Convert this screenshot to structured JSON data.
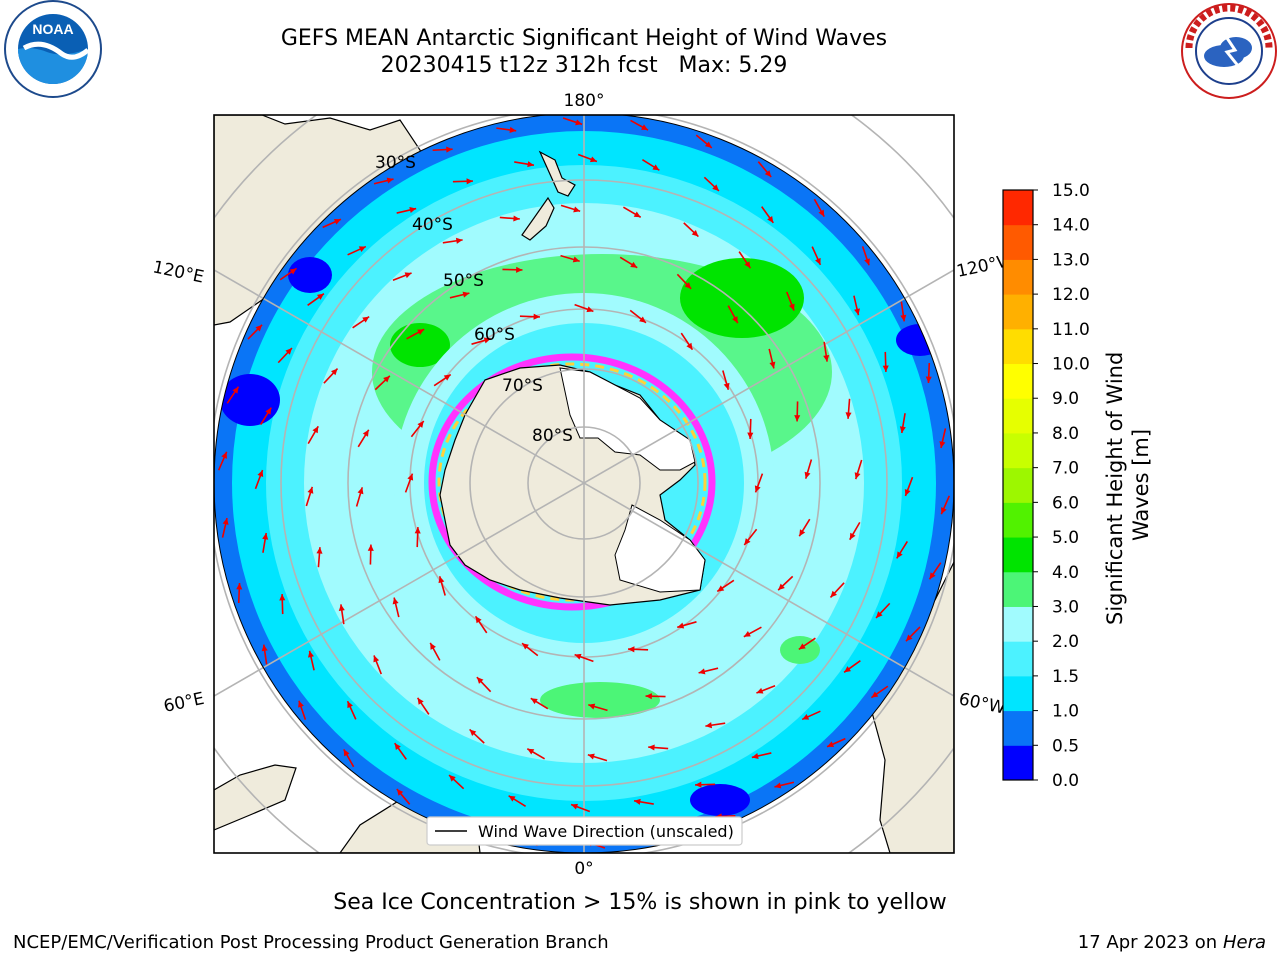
{
  "header": {
    "title": "GEFS MEAN Antarctic Significant Height of Wind Waves",
    "subtitle": "20230415 t12z 312h fcst   Max: 5.29"
  },
  "logos": {
    "noaa": {
      "text": "NOAA",
      "icon": "noaa-logo-icon"
    },
    "nws": {
      "text": "NATIONAL WEATHER SERVICE",
      "icon": "nws-logo-icon"
    }
  },
  "map": {
    "projection": "south-polar-stereographic",
    "longitude_labels": {
      "top": "180°",
      "bottom": "0°",
      "upper_left": "120°E",
      "upper_right": "120°W",
      "lower_left": "60°E",
      "lower_right": "60°W"
    },
    "latitude_labels": [
      "30°S",
      "40°S",
      "50°S",
      "60°S",
      "70°S",
      "80°S"
    ],
    "legend_label": "Wind Wave Direction (unscaled)",
    "colors": {
      "land": "#efebdc",
      "ice": "#ffffff",
      "arrow": "#ee0000",
      "grid": "#b4b4b4"
    }
  },
  "colorbar": {
    "label_line1": "Significant Height of Wind",
    "label_line2": "Waves [m]",
    "ticks": [
      "0.0",
      "0.5",
      "1.0",
      "1.5",
      "2.0",
      "3.0",
      "4.0",
      "5.0",
      "6.0",
      "7.0",
      "8.0",
      "9.0",
      "10.0",
      "11.0",
      "12.0",
      "13.0",
      "14.0",
      "15.0"
    ],
    "colors": [
      "#0000ff",
      "#0a75f6",
      "#00e5ff",
      "#4cf2ff",
      "#a1fbfe",
      "#4cf577",
      "#00e400",
      "#51f200",
      "#9df700",
      "#c8ff00",
      "#e6ff00",
      "#ffff00",
      "#ffdd00",
      "#ffb000",
      "#ff8c00",
      "#ff5a00",
      "#ff2800"
    ]
  },
  "footer": {
    "ice_note": "Sea Ice Concentration > 15% is shown in pink to yellow",
    "credit": "NCEP/EMC/Verification Post Processing Product Generation Branch",
    "date": "17 Apr 2023 on ",
    "machine": "Hera"
  }
}
